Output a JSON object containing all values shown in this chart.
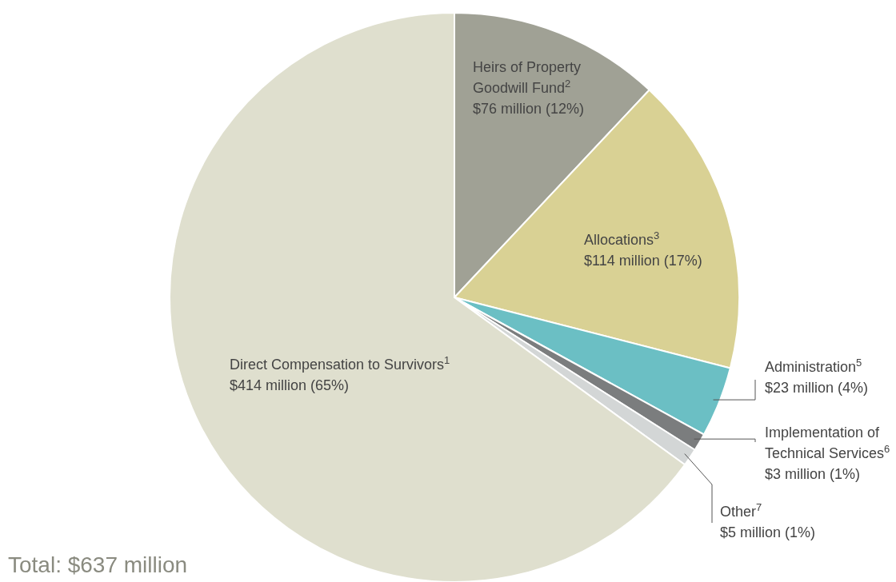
{
  "chart_data": {
    "type": "pie",
    "categories": [
      "Heirs of Property Goodwill Fund$^{2}$",
      "Allocations$^{3}$",
      "Administration$^{5}$",
      "Implementation of Technical Services$^{6}$",
      "Other$^{7}$",
      "Direct Compensation to Survivors$^{1}$"
    ],
    "values": [
      12,
      17,
      4,
      1,
      1,
      65
    ],
    "colors": [
      "#a0a195",
      "#d9d194",
      "#6bbfc4",
      "#7b7d7e",
      "#d3d6d6",
      "#dfdfce"
    ],
    "value_labels": [
      "$76 million (12%)",
      "$114 million (17%)",
      "$23 million (4%)",
      "$3 million (1%)",
      "$5 million (1%)",
      "$414 million (65%)"
    ],
    "annotations": [
      "Total: $637 million"
    ]
  }
}
